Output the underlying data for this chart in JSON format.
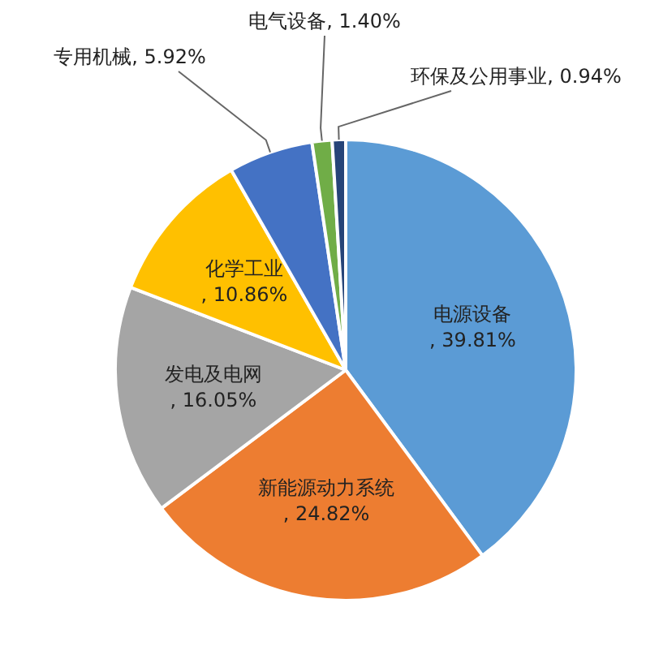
{
  "chart_data": {
    "type": "pie",
    "categories": [
      "电源设备",
      "新能源动力系统",
      "发电及电网",
      "化学工业",
      "专用机械",
      "电气设备",
      "环保及公用事业"
    ],
    "values": [
      39.81,
      24.82,
      16.05,
      10.86,
      5.92,
      1.4,
      0.94
    ],
    "value_labels": [
      ", 39.81%",
      ", 24.82%",
      ", 16.05%",
      ", 10.86%",
      ", 5.92%",
      ", 1.40%",
      ", 0.94%"
    ],
    "colors": [
      "#5b9bd5",
      "#ed7d31",
      "#a5a5a5",
      "#ffc000",
      "#4472c4",
      "#70ad47",
      "#264478"
    ],
    "legend": false
  }
}
